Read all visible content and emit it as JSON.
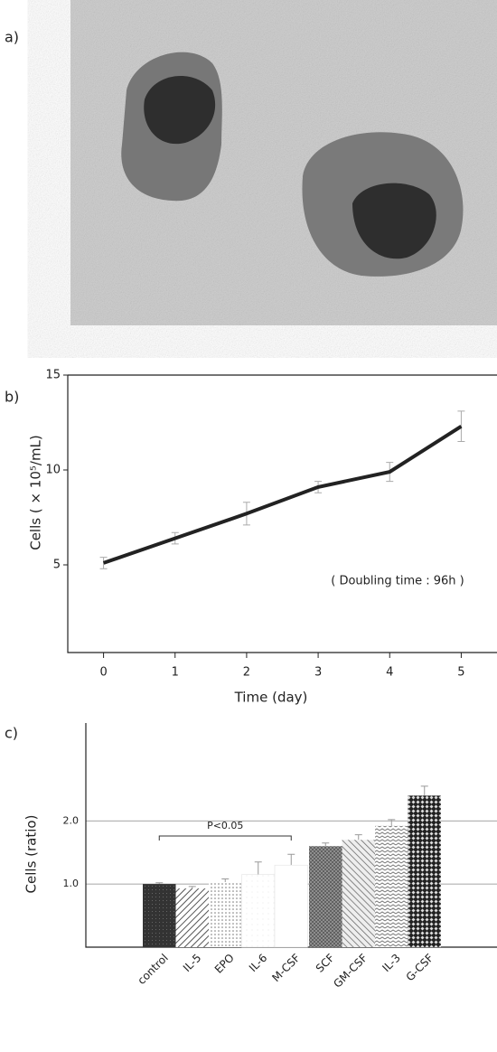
{
  "panel_a": {
    "label": "a)"
  },
  "chart_data": [
    {
      "type": "line",
      "label": "b)",
      "x": [
        0,
        1,
        2,
        3,
        4,
        5
      ],
      "xlim": [
        -0.5,
        5.5
      ],
      "xticks": [
        0,
        1,
        2,
        3,
        4,
        5
      ],
      "ylim": [
        0,
        15
      ],
      "yticks": [
        5,
        10,
        15
      ],
      "xlabel": "Time (day)",
      "ylabel": "Cells ( × 10⁵/mL)",
      "annotation": "( Doubling time :  96h )",
      "series": [
        {
          "color": "#222222",
          "values": [
            5.1,
            6.4,
            7.7,
            9.1,
            9.9,
            12.3
          ],
          "errors": [
            0.3,
            0.3,
            0.6,
            0.3,
            0.5,
            0.8
          ]
        }
      ]
    },
    {
      "type": "bar",
      "label": "c)",
      "categories": [
        "control",
        "IL-5",
        "EPO",
        "IL-6",
        "M-CSF",
        "SCF",
        "GM-CSF",
        "IL-3",
        "G-CSF"
      ],
      "values": [
        1.0,
        0.93,
        1.03,
        1.15,
        1.3,
        1.6,
        1.7,
        1.92,
        2.4
      ],
      "errors": [
        0.02,
        0.03,
        0.05,
        0.2,
        0.17,
        0.05,
        0.08,
        0.1,
        0.15
      ],
      "ylim": [
        0,
        3.55
      ],
      "yticks": [
        {
          "value": 1,
          "label": "1.0"
        },
        {
          "value": 2,
          "label": "2.0"
        }
      ],
      "grid": true,
      "ylabel": "Cells (ratio)",
      "annotation": "P<0.05"
    }
  ]
}
